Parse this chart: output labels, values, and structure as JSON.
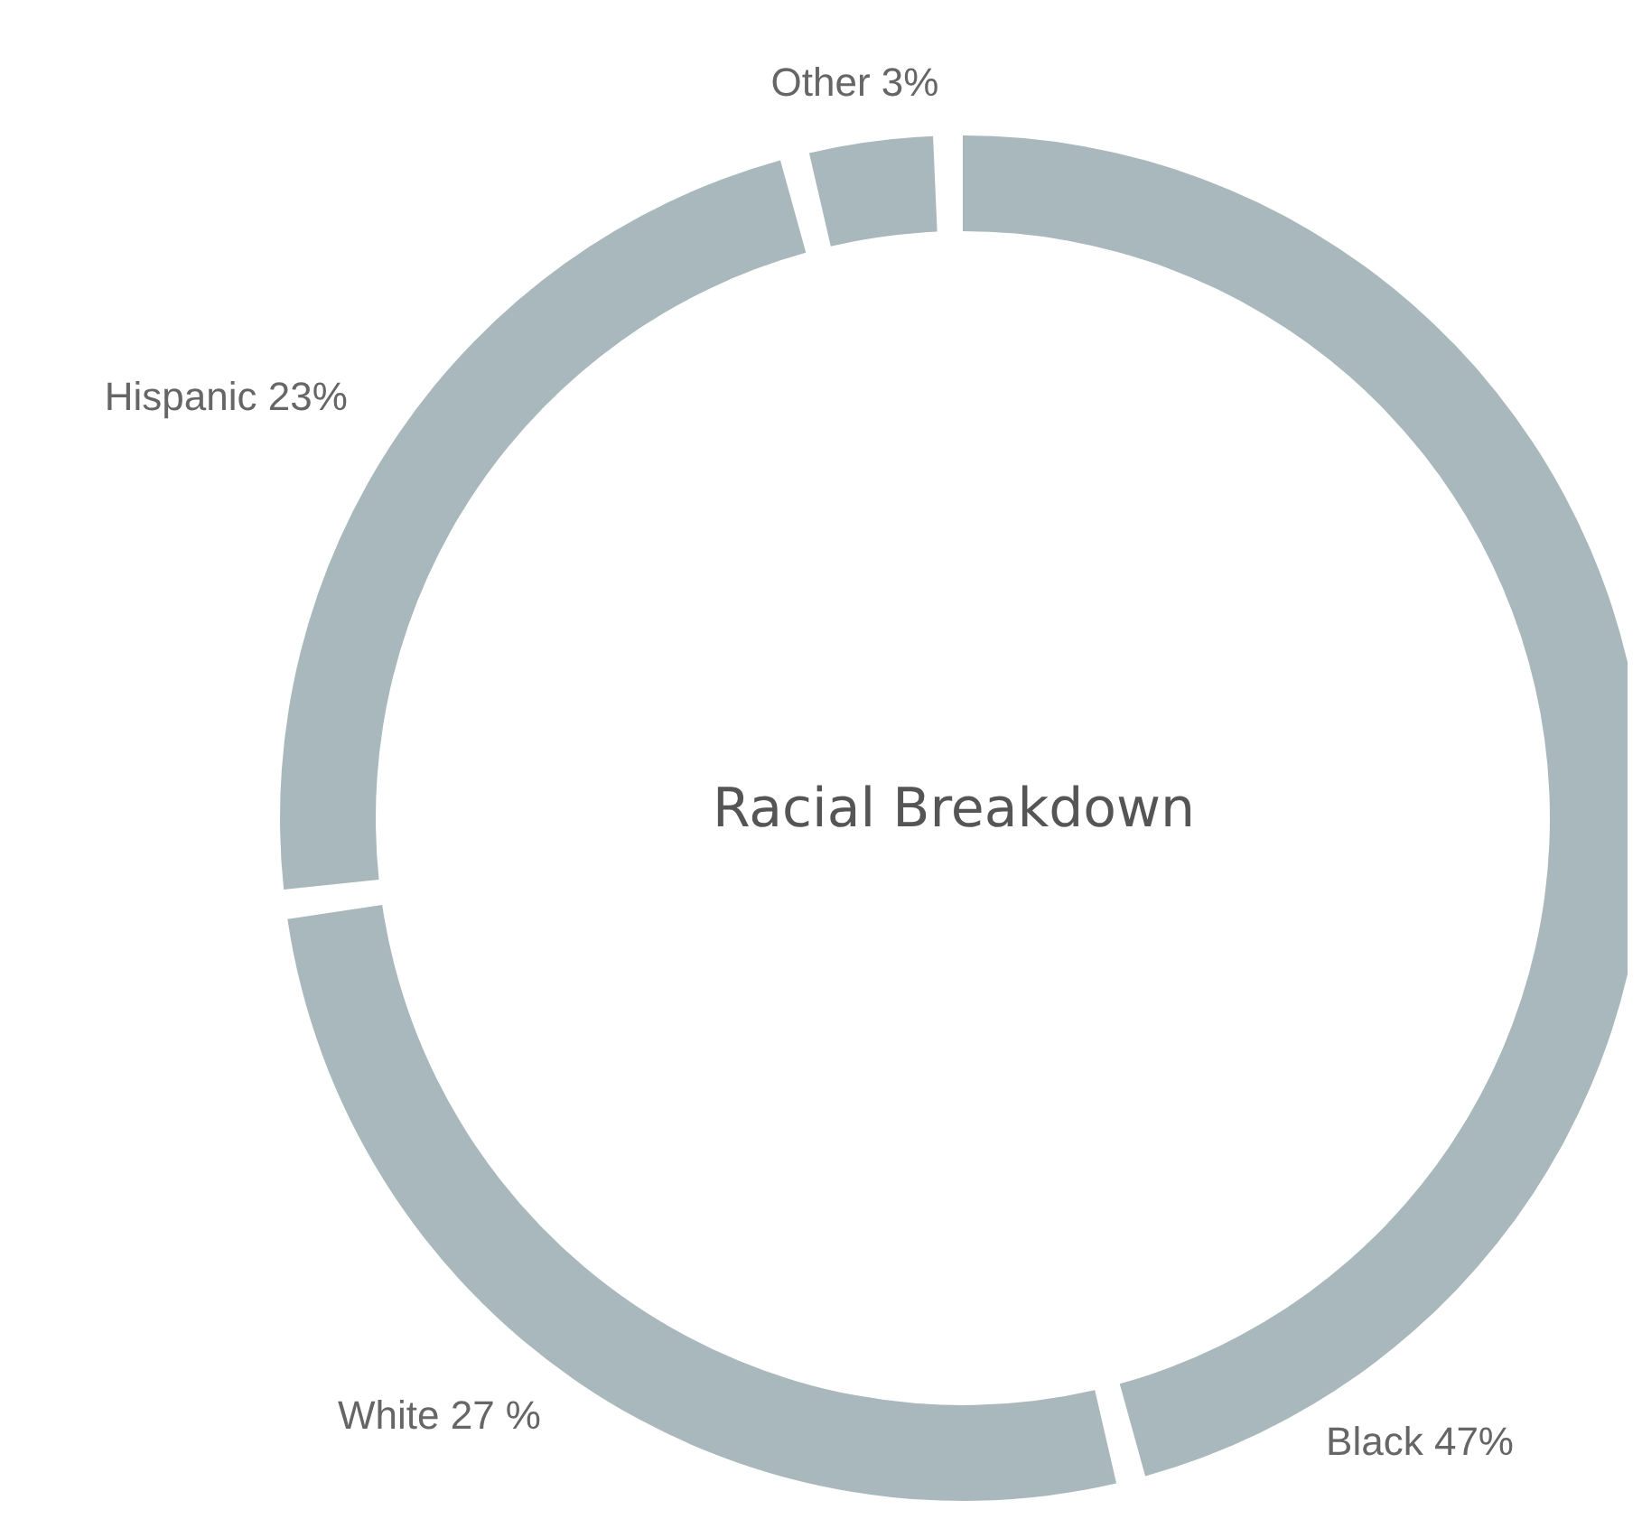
{
  "chart_data": {
    "type": "donut",
    "title": "Racial Breakdown",
    "categories": [
      "Black",
      "White",
      "Hispanic",
      "Other"
    ],
    "values": [
      47,
      27,
      23,
      3
    ],
    "value_labels": [
      "47%",
      "27 %",
      "23%",
      "3%"
    ],
    "colors": [
      "#a9b8bc",
      "#a9b8bc",
      "#a9b8bc",
      "#a9b8bc"
    ],
    "legend": false
  }
}
